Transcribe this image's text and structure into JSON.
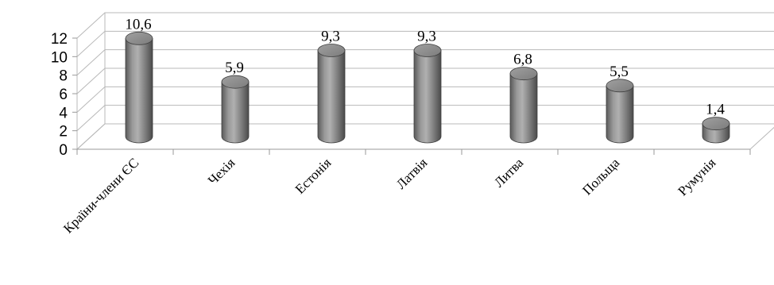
{
  "chart_data": {
    "type": "bar",
    "style": "3d-cylinder",
    "categories": [
      "Країни-члени ЄС",
      "Чехія",
      "Естонія",
      "Латвія",
      "Литва",
      "Польща",
      "Румунія"
    ],
    "values": [
      10.6,
      5.9,
      9.3,
      9.3,
      6.8,
      5.5,
      1.4
    ],
    "data_labels": [
      "10,6",
      "5,9",
      "9,3",
      "9,3",
      "6,8",
      "5,5",
      "1,4"
    ],
    "y_ticks": [
      "0",
      "2",
      "4",
      "6",
      "8",
      "10",
      "12"
    ],
    "ylim": [
      0,
      12
    ],
    "grid": true,
    "legend": "none",
    "bar_color": "#8a8a8a"
  }
}
